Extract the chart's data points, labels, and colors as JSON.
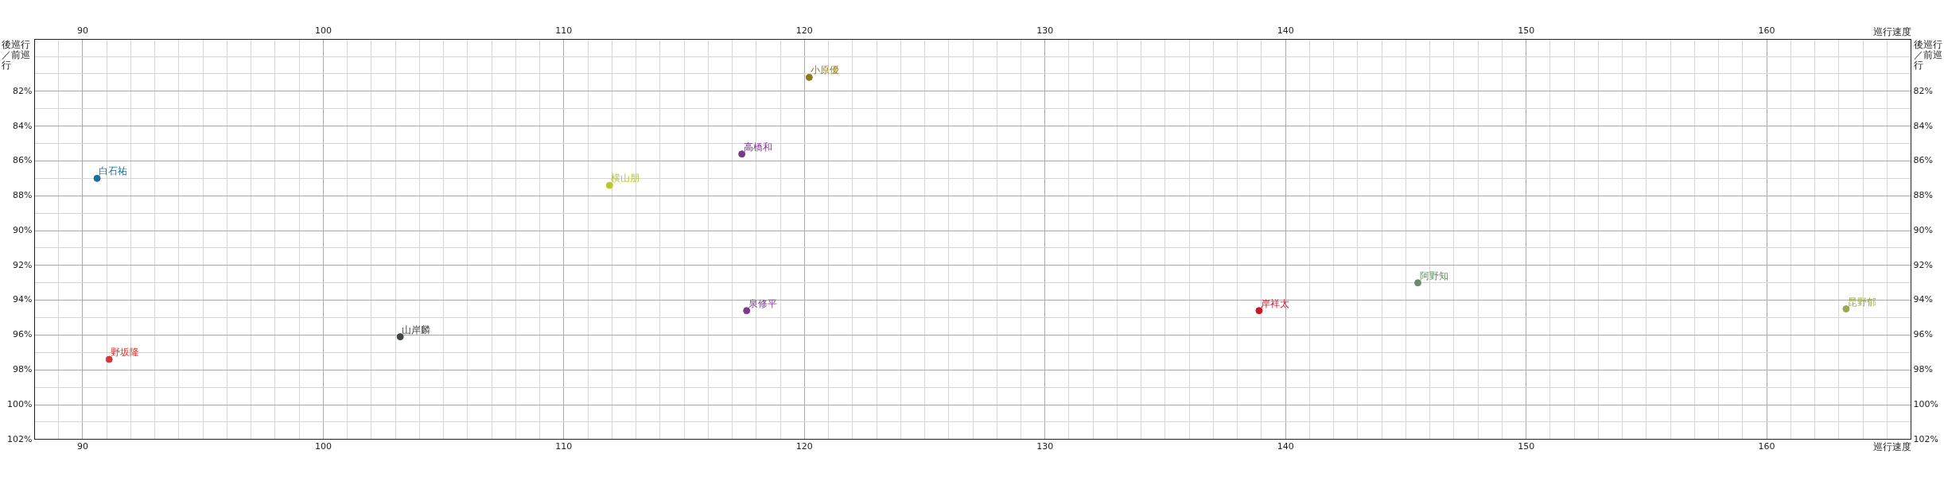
{
  "chart_data": {
    "type": "scatter",
    "xlabel": "巡行速度",
    "x2label": "巡行速度",
    "ylabel": "後巡行／前巡行",
    "y2label": "後巡行／前巡行",
    "xlim": [
      88,
      166
    ],
    "x2lim": [
      88,
      166
    ],
    "xticks": [
      {
        "value": 88,
        "label": null
      },
      {
        "value": 89,
        "label": null
      },
      90,
      {
        "value": 91,
        "label": null
      },
      {
        "value": 92,
        "label": null
      },
      {
        "value": 93,
        "label": null
      },
      {
        "value": 94,
        "label": null
      },
      {
        "value": 95,
        "label": null
      },
      {
        "value": 96,
        "label": null
      },
      {
        "value": 97,
        "label": null
      },
      {
        "value": 98,
        "label": null
      },
      {
        "value": 99,
        "label": null
      },
      100,
      {
        "value": 101,
        "label": null
      },
      {
        "value": 102,
        "label": null
      },
      {
        "value": 103,
        "label": null
      },
      {
        "value": 104,
        "label": null
      },
      {
        "value": 105,
        "label": null
      },
      {
        "value": 106,
        "label": null
      },
      {
        "value": 107,
        "label": null
      },
      {
        "value": 108,
        "label": null
      },
      {
        "value": 109,
        "label": null
      },
      110,
      {
        "value": 111,
        "label": null
      },
      {
        "value": 112,
        "label": null
      },
      {
        "value": 113,
        "label": null
      },
      {
        "value": 114,
        "label": null
      },
      {
        "value": 115,
        "label": null
      },
      {
        "value": 116,
        "label": null
      },
      {
        "value": 117,
        "label": null
      },
      {
        "value": 118,
        "label": null
      },
      {
        "value": 119,
        "label": null
      },
      120,
      {
        "value": 121,
        "label": null
      },
      {
        "value": 122,
        "label": null
      },
      {
        "value": 123,
        "label": null
      },
      {
        "value": 124,
        "label": null
      },
      {
        "value": 125,
        "label": null
      },
      {
        "value": 126,
        "label": null
      },
      {
        "value": 127,
        "label": null
      },
      {
        "value": 128,
        "label": null
      },
      {
        "value": 129,
        "label": null
      },
      130,
      {
        "value": 131,
        "label": null
      },
      {
        "value": 132,
        "label": null
      },
      {
        "value": 133,
        "label": null
      },
      {
        "value": 134,
        "label": null
      },
      {
        "value": 135,
        "label": null
      },
      {
        "value": 136,
        "label": null
      },
      {
        "value": 137,
        "label": null
      },
      {
        "value": 138,
        "label": null
      },
      {
        "value": 139,
        "label": null
      },
      140,
      {
        "value": 141,
        "label": null
      },
      {
        "value": 142,
        "label": null
      },
      {
        "value": 143,
        "label": null
      },
      {
        "value": 144,
        "label": null
      },
      {
        "value": 145,
        "label": null
      },
      {
        "value": 146,
        "label": null
      },
      {
        "value": 147,
        "label": null
      },
      {
        "value": 148,
        "label": null
      },
      {
        "value": 149,
        "label": null
      },
      150,
      {
        "value": 151,
        "label": null
      },
      {
        "value": 152,
        "label": null
      },
      {
        "value": 153,
        "label": null
      },
      {
        "value": 154,
        "label": null
      },
      {
        "value": 155,
        "label": null
      },
      {
        "value": 156,
        "label": null
      },
      {
        "value": 157,
        "label": null
      },
      {
        "value": 158,
        "label": null
      },
      {
        "value": 159,
        "label": null
      },
      160,
      {
        "value": 161,
        "label": null
      },
      {
        "value": 162,
        "label": null
      },
      {
        "value": 163,
        "label": null
      },
      {
        "value": 164,
        "label": null
      },
      {
        "value": 165,
        "label": null
      },
      {
        "value": 166,
        "label": null
      }
    ],
    "x2ticks": [
      90,
      100,
      110,
      120,
      130,
      140,
      150,
      160
    ],
    "ylim": [
      102,
      79
    ],
    "y2lim": [
      102,
      79
    ],
    "yticks": [
      {
        "value": 79,
        "label": null
      },
      {
        "value": 80,
        "label": null
      },
      {
        "value": 81,
        "label": null
      },
      {
        "value": 82,
        "label": "82%"
      },
      {
        "value": 83,
        "label": null
      },
      {
        "value": 84,
        "label": "84%"
      },
      {
        "value": 85,
        "label": null
      },
      {
        "value": 86,
        "label": "86%"
      },
      {
        "value": 87,
        "label": null
      },
      {
        "value": 88,
        "label": "88%"
      },
      {
        "value": 89,
        "label": null
      },
      {
        "value": 90,
        "label": "90%"
      },
      {
        "value": 91,
        "label": null
      },
      {
        "value": 92,
        "label": "92%"
      },
      {
        "value": 93,
        "label": null
      },
      {
        "value": 94,
        "label": "94%"
      },
      {
        "value": 95,
        "label": null
      },
      {
        "value": 96,
        "label": "96%"
      },
      {
        "value": 97,
        "label": null
      },
      {
        "value": 98,
        "label": "98%"
      },
      {
        "value": 99,
        "label": null
      },
      {
        "value": 100,
        "label": "100%"
      },
      {
        "value": 101,
        "label": null
      },
      {
        "value": 102,
        "label": "102%"
      }
    ],
    "y2ticks": [
      {
        "value": 82,
        "label": "82%"
      },
      {
        "value": 84,
        "label": "84%"
      },
      {
        "value": 86,
        "label": "86%"
      },
      {
        "value": 88,
        "label": "88%"
      },
      {
        "value": 90,
        "label": "90%"
      },
      {
        "value": 92,
        "label": "92%"
      },
      {
        "value": 94,
        "label": "94%"
      },
      {
        "value": 96,
        "label": "96%"
      },
      {
        "value": 98,
        "label": "98%"
      },
      {
        "value": 100,
        "label": "100%"
      },
      {
        "value": 102,
        "label": "102%"
      }
    ],
    "grid": true,
    "legend": false,
    "marker": "circle",
    "series": [
      {
        "name": "白石祐",
        "color": "#1f6f96",
        "x": [
          90.6
        ],
        "values": [
          87.0
        ]
      },
      {
        "name": "野坂隆",
        "color": "#d23a3a",
        "x": [
          91.1
        ],
        "values": [
          97.4
        ]
      },
      {
        "name": "山岸麟",
        "color": "#404444",
        "x": [
          103.2
        ],
        "values": [
          96.1
        ]
      },
      {
        "name": "横山朋",
        "color": "#b9c92c",
        "x": [
          111.9
        ],
        "values": [
          87.4
        ]
      },
      {
        "name": "小原優",
        "color": "#8c7a1c",
        "x": [
          120.2
        ],
        "values": [
          81.2
        ]
      },
      {
        "name": "高橋和",
        "color": "#7c3a8e",
        "x": [
          117.4
        ],
        "values": [
          85.6
        ]
      },
      {
        "name": "泉修平",
        "color": "#7c3a8e",
        "x": [
          117.6
        ],
        "values": [
          94.6
        ]
      },
      {
        "name": "岸祥太",
        "color": "#d2142a",
        "x": [
          138.9
        ],
        "values": [
          94.6
        ]
      },
      {
        "name": "阿野知",
        "color": "#6a8c6a",
        "x": [
          145.5
        ],
        "values": [
          93.0
        ]
      },
      {
        "name": "昆野郁",
        "color": "#9aaa4a",
        "x": [
          163.3
        ],
        "values": [
          94.5
        ]
      }
    ]
  }
}
